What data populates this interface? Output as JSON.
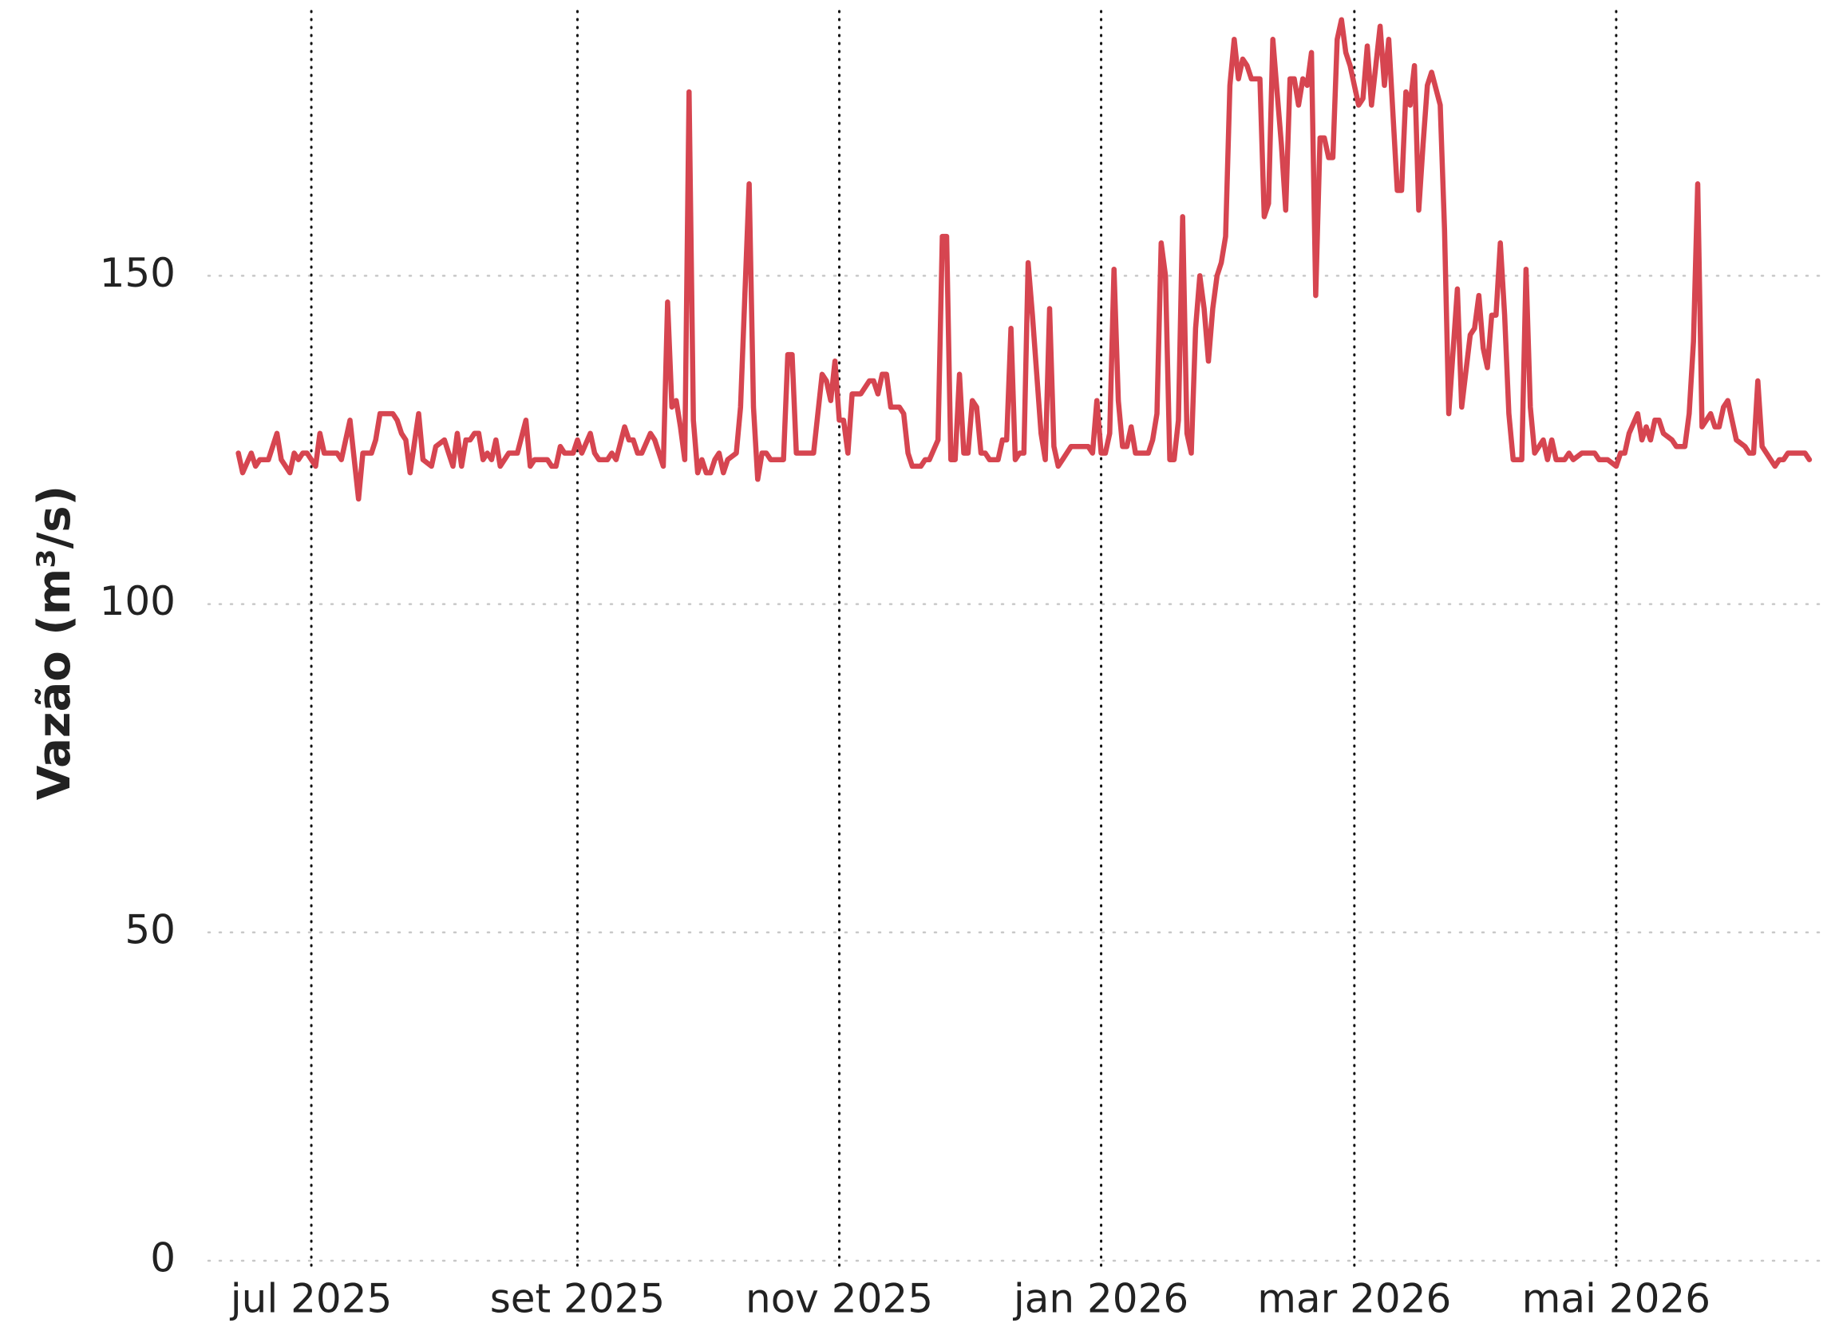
{
  "chart_data": {
    "type": "line",
    "y_label": "Vazão (m³/s)",
    "color": "#d64550",
    "x": [
      -17,
      -16,
      -14,
      -13,
      -12,
      -10,
      -8,
      -7,
      -5,
      -4,
      -3,
      -2,
      -1,
      1,
      2,
      3,
      6,
      7,
      9,
      11,
      12,
      14,
      15,
      16,
      19,
      20,
      21,
      22,
      23,
      25,
      26,
      28,
      29,
      31,
      32,
      33,
      34,
      35,
      36,
      37,
      38,
      39,
      40,
      41,
      42,
      43,
      44,
      45,
      46,
      48,
      50,
      51,
      52,
      55,
      56,
      57,
      58,
      59,
      61,
      62,
      63,
      65,
      66,
      67,
      69,
      70,
      71,
      73,
      74,
      75,
      76,
      77,
      79,
      80,
      82,
      83,
      84,
      85,
      86,
      87,
      88,
      89,
      90,
      91,
      92,
      93,
      94,
      95,
      96,
      97,
      99,
      100,
      102,
      103,
      104,
      105,
      106,
      107,
      110,
      111,
      112,
      113,
      117,
      119,
      120,
      121,
      122,
      123,
      124,
      125,
      126,
      128,
      130,
      131,
      132,
      133,
      134,
      135,
      137,
      138,
      139,
      140,
      142,
      143,
      144,
      146,
      147,
      148,
      149,
      150,
      151,
      152,
      153,
      154,
      155,
      156,
      157,
      158,
      160,
      161,
      162,
      163,
      164,
      165,
      166,
      167,
      168,
      170,
      171,
      172,
      173,
      174,
      175,
      176,
      177,
      181,
      182,
      183,
      184,
      185,
      186,
      187,
      188,
      189,
      190,
      191,
      192,
      194,
      195,
      196,
      197,
      198,
      199,
      200,
      201,
      202,
      203,
      204,
      205,
      206,
      207,
      208,
      209,
      210,
      211,
      212,
      213,
      214,
      215,
      216,
      217,
      218,
      219,
      221,
      222,
      223,
      224,
      225,
      226,
      227,
      228,
      229,
      230,
      231,
      232,
      233,
      234,
      235,
      236,
      237,
      238,
      239,
      240,
      241,
      242,
      243,
      244,
      245,
      246,
      247,
      248,
      249,
      250,
      251,
      253,
      254,
      255,
      256,
      257,
      258,
      259,
      260,
      261,
      263,
      264,
      265,
      267,
      268,
      270,
      271,
      272,
      273,
      274,
      275,
      276,
      277,
      278,
      279,
      280,
      282,
      283,
      284,
      285,
      287,
      288,
      289,
      290,
      292,
      293,
      294,
      296,
      299,
      300,
      302,
      304,
      305,
      306,
      307,
      309,
      310,
      311,
      312,
      313,
      314,
      315,
      317,
      318,
      320,
      321,
      322,
      323,
      324,
      326,
      327,
      328,
      329,
      330,
      332,
      334,
      335,
      336,
      337,
      338,
      339,
      341,
      342,
      343,
      344,
      347,
      348,
      349
    ],
    "values": [
      123,
      120,
      123,
      121,
      122,
      122,
      126,
      122,
      120,
      123,
      122,
      123,
      123,
      121,
      126,
      123,
      123,
      122,
      128,
      116,
      123,
      123,
      125,
      129,
      129,
      128,
      126,
      125,
      120,
      129,
      122,
      121,
      124,
      125,
      123,
      121,
      126,
      121,
      125,
      125,
      126,
      126,
      122,
      123,
      122,
      125,
      121,
      122,
      123,
      123,
      128,
      121,
      122,
      122,
      121,
      121,
      124,
      123,
      123,
      125,
      123,
      126,
      123,
      122,
      122,
      123,
      122,
      127,
      125,
      125,
      123,
      123,
      126,
      125,
      121,
      146,
      130,
      131,
      127,
      122,
      178,
      128,
      120,
      122,
      120,
      120,
      122,
      123,
      120,
      122,
      123,
      130,
      164,
      130,
      119,
      123,
      123,
      122,
      122,
      138,
      138,
      123,
      123,
      135,
      134,
      131,
      137,
      128,
      128,
      123,
      132,
      132,
      134,
      134,
      132,
      135,
      135,
      130,
      130,
      129,
      123,
      121,
      121,
      122,
      122,
      125,
      156,
      156,
      122,
      122,
      135,
      123,
      123,
      131,
      130,
      123,
      123,
      122,
      122,
      125,
      125,
      142,
      122,
      123,
      123,
      152,
      144,
      126,
      122,
      145,
      124,
      121,
      122,
      123,
      124,
      124,
      123,
      131,
      123,
      123,
      126,
      151,
      131,
      124,
      124,
      127,
      123,
      123,
      123,
      125,
      129,
      155,
      150,
      122,
      122,
      128,
      159,
      126,
      123,
      142,
      150,
      145,
      137,
      145,
      150,
      152,
      156,
      179,
      186,
      180,
      183,
      182,
      180,
      180,
      159,
      161,
      186,
      178,
      170,
      160,
      180,
      180,
      176,
      180,
      179,
      184,
      147,
      171,
      171,
      168,
      168,
      186,
      189,
      184,
      182,
      179,
      176,
      177,
      185,
      176,
      182,
      188,
      179,
      186,
      163,
      163,
      178,
      176,
      182,
      160,
      170,
      179,
      181,
      176,
      157,
      129,
      148,
      130,
      141,
      142,
      147,
      139,
      136,
      144,
      144,
      155,
      144,
      129,
      122,
      122,
      151,
      130,
      123,
      125,
      122,
      125,
      122,
      122,
      123,
      122,
      123,
      123,
      122,
      122,
      121,
      123,
      123,
      126,
      129,
      125,
      127,
      125,
      128,
      128,
      126,
      125,
      124,
      124,
      129,
      140,
      164,
      127,
      129,
      127,
      127,
      130,
      131,
      125,
      124,
      123,
      123,
      134,
      124,
      123,
      121,
      122,
      122,
      123,
      123,
      123,
      122
    ],
    "xlim": [
      -24,
      352
    ],
    "xticks": [
      {
        "value": 0,
        "label": "jul 2025"
      },
      {
        "value": 62,
        "label": "set 2025"
      },
      {
        "value": 123,
        "label": "nov 2025"
      },
      {
        "value": 184,
        "label": "jan 2026"
      },
      {
        "value": 243,
        "label": "mar 2026"
      },
      {
        "value": 304,
        "label": "mai 2026"
      }
    ],
    "ylim": [
      0,
      192
    ],
    "yticks": [
      0,
      50,
      100,
      150
    ],
    "grid": true
  }
}
